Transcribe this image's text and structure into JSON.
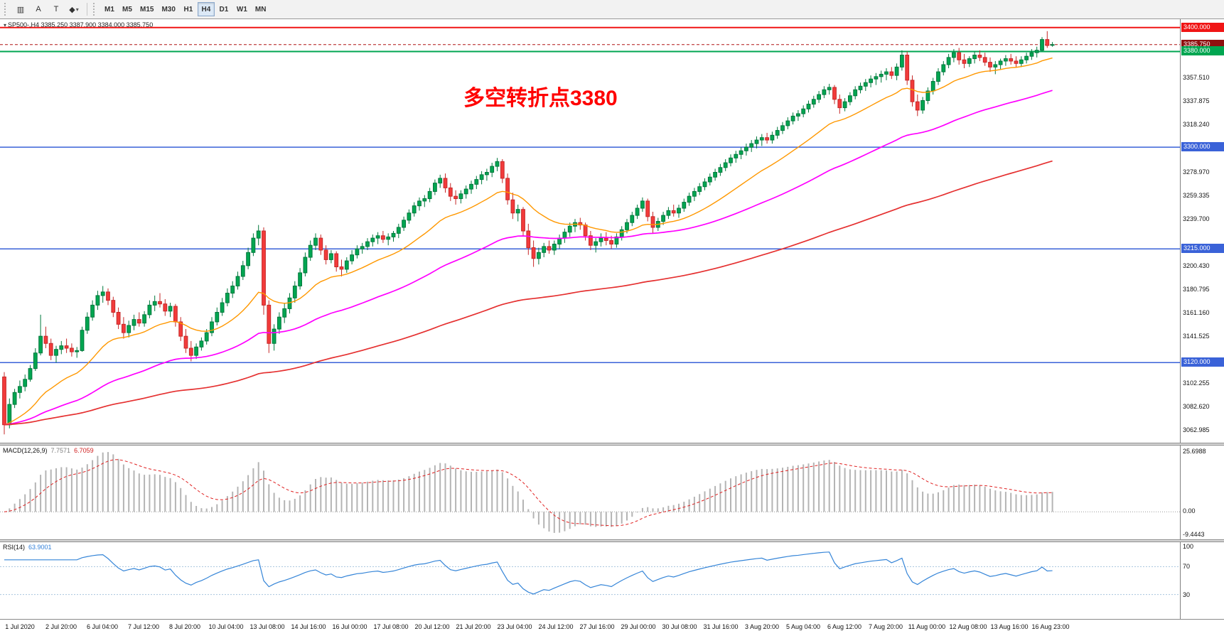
{
  "toolbar": {
    "tools": [
      {
        "name": "chart-mode",
        "glyph": "▥"
      },
      {
        "name": "text-label",
        "glyph": "A"
      },
      {
        "name": "text-box",
        "glyph": "T"
      },
      {
        "name": "shapes",
        "glyph": "◆"
      }
    ],
    "caret_glyph": "▾",
    "timeframes": [
      "M1",
      "M5",
      "M15",
      "M30",
      "H1",
      "H4",
      "D1",
      "W1",
      "MN"
    ],
    "active_timeframe": "H4"
  },
  "chart_data": {
    "type": "candlestick",
    "symbol": "SP500-",
    "timeframe": "H4",
    "title_line": "SP500-,H4  3385.250 3387.900 3384.000 3385.750",
    "annotation": {
      "text": "多空转折点3380",
      "color": "#ff0000"
    },
    "ylim": [
      3053,
      3407
    ],
    "up_color": "#00a651",
    "up_stroke": "#00783c",
    "down_color": "#f23b3b",
    "down_stroke": "#c62828",
    "hlines": [
      {
        "price": 3400.0,
        "label": "3400.000",
        "color": "#f01515",
        "width": 2,
        "dash": "",
        "badge_bg": "#f01515"
      },
      {
        "price": 3385.75,
        "label": "3385.750",
        "color": "#b01212",
        "width": 1,
        "dash": "4,3",
        "badge_bg": "#8f1010"
      },
      {
        "price": 3380.0,
        "label": "3380.000",
        "color": "#00a651",
        "width": 2,
        "dash": "",
        "badge_bg": "#00a651"
      },
      {
        "price": 3300.0,
        "label": "3300.000",
        "color": "#3a62d8",
        "width": 1.5,
        "dash": "",
        "badge_bg": "#3a62d8"
      },
      {
        "price": 3215.0,
        "label": "3215.000",
        "color": "#3a62d8",
        "width": 1.5,
        "dash": "",
        "badge_bg": "#3a62d8"
      },
      {
        "price": 3120.0,
        "label": "3120.000",
        "color": "#3a62d8",
        "width": 1.5,
        "dash": "",
        "badge_bg": "#3a62d8"
      }
    ],
    "y_axis_ticks": [
      3357.51,
      3337.875,
      3318.24,
      3278.97,
      3259.335,
      3239.7,
      3200.43,
      3180.795,
      3161.16,
      3141.525,
      3102.255,
      3082.62,
      3062.985
    ],
    "x_labels": [
      "1 Jul 2020",
      "2 Jul 20:00",
      "6 Jul 04:00",
      "7 Jul 12:00",
      "8 Jul 20:00",
      "10 Jul 04:00",
      "13 Jul 08:00",
      "14 Jul 16:00",
      "16 Jul 00:00",
      "17 Jul 08:00",
      "20 Jul 12:00",
      "21 Jul 20:00",
      "23 Jul 04:00",
      "24 Jul 12:00",
      "27 Jul 16:00",
      "29 Jul 00:00",
      "30 Jul 08:00",
      "31 Jul 16:00",
      "3 Aug 20:00",
      "5 Aug 04:00",
      "6 Aug 12:00",
      "7 Aug 20:00",
      "11 Aug 00:00",
      "12 Aug 08:00",
      "13 Aug 16:00",
      "16 Aug 23:00"
    ],
    "overlays": [
      {
        "name": "ma-fast",
        "type": "ema",
        "period": 20,
        "color": "#ff9800",
        "width": 1.4
      },
      {
        "name": "ma-mid",
        "type": "ema",
        "period": 60,
        "color": "#ff00ff",
        "width": 1.7
      },
      {
        "name": "ma-slow",
        "type": "ema",
        "period": 150,
        "color": "#e53030",
        "width": 1.7
      }
    ],
    "candles": [
      [
        3108,
        3112,
        3060,
        3068
      ],
      [
        3068,
        3090,
        3065,
        3085
      ],
      [
        3085,
        3098,
        3082,
        3095
      ],
      [
        3095,
        3105,
        3090,
        3100
      ],
      [
        3100,
        3110,
        3096,
        3106
      ],
      [
        3106,
        3118,
        3104,
        3115
      ],
      [
        3115,
        3132,
        3113,
        3128
      ],
      [
        3128,
        3160,
        3126,
        3142
      ],
      [
        3142,
        3150,
        3132,
        3136
      ],
      [
        3136,
        3140,
        3122,
        3126
      ],
      [
        3126,
        3134,
        3120,
        3131
      ],
      [
        3131,
        3138,
        3127,
        3134
      ],
      [
        3134,
        3140,
        3128,
        3132
      ],
      [
        3132,
        3136,
        3125,
        3129
      ],
      [
        3129,
        3133,
        3124,
        3130
      ],
      [
        3130,
        3150,
        3129,
        3147
      ],
      [
        3147,
        3162,
        3144,
        3158
      ],
      [
        3158,
        3172,
        3155,
        3168
      ],
      [
        3168,
        3180,
        3164,
        3176
      ],
      [
        3176,
        3184,
        3170,
        3179
      ],
      [
        3179,
        3182,
        3168,
        3172
      ],
      [
        3172,
        3175,
        3158,
        3162
      ],
      [
        3162,
        3166,
        3148,
        3152
      ],
      [
        3152,
        3158,
        3140,
        3145
      ],
      [
        3145,
        3155,
        3141,
        3151
      ],
      [
        3151,
        3160,
        3147,
        3156
      ],
      [
        3156,
        3162,
        3150,
        3153
      ],
      [
        3153,
        3163,
        3150,
        3160
      ],
      [
        3160,
        3172,
        3157,
        3168
      ],
      [
        3168,
        3176,
        3163,
        3171
      ],
      [
        3171,
        3178,
        3166,
        3169
      ],
      [
        3169,
        3173,
        3159,
        3163
      ],
      [
        3163,
        3170,
        3158,
        3167
      ],
      [
        3167,
        3169,
        3150,
        3154
      ],
      [
        3154,
        3158,
        3138,
        3142
      ],
      [
        3142,
        3148,
        3128,
        3132
      ],
      [
        3132,
        3138,
        3121,
        3126
      ],
      [
        3126,
        3136,
        3123,
        3133
      ],
      [
        3133,
        3141,
        3130,
        3138
      ],
      [
        3138,
        3148,
        3135,
        3145
      ],
      [
        3145,
        3158,
        3142,
        3154
      ],
      [
        3154,
        3166,
        3151,
        3162
      ],
      [
        3162,
        3174,
        3159,
        3170
      ],
      [
        3170,
        3182,
        3167,
        3178
      ],
      [
        3178,
        3188,
        3174,
        3184
      ],
      [
        3184,
        3196,
        3181,
        3192
      ],
      [
        3192,
        3205,
        3189,
        3201
      ],
      [
        3201,
        3216,
        3198,
        3212
      ],
      [
        3212,
        3228,
        3209,
        3224
      ],
      [
        3224,
        3235,
        3218,
        3230
      ],
      [
        3230,
        3233,
        3160,
        3168
      ],
      [
        3168,
        3172,
        3128,
        3136
      ],
      [
        3136,
        3152,
        3130,
        3148
      ],
      [
        3148,
        3162,
        3144,
        3158
      ],
      [
        3158,
        3170,
        3153,
        3165
      ],
      [
        3165,
        3178,
        3161,
        3174
      ],
      [
        3174,
        3188,
        3170,
        3184
      ],
      [
        3184,
        3199,
        3181,
        3195
      ],
      [
        3195,
        3212,
        3192,
        3208
      ],
      [
        3208,
        3222,
        3205,
        3218
      ],
      [
        3218,
        3228,
        3214,
        3224
      ],
      [
        3224,
        3227,
        3210,
        3214
      ],
      [
        3214,
        3218,
        3202,
        3206
      ],
      [
        3206,
        3214,
        3203,
        3211
      ],
      [
        3211,
        3213,
        3196,
        3200
      ],
      [
        3200,
        3206,
        3192,
        3198
      ],
      [
        3198,
        3208,
        3195,
        3205
      ],
      [
        3205,
        3214,
        3202,
        3210
      ],
      [
        3210,
        3218,
        3207,
        3215
      ],
      [
        3215,
        3220,
        3211,
        3217
      ],
      [
        3217,
        3224,
        3214,
        3221
      ],
      [
        3221,
        3227,
        3217,
        3224
      ],
      [
        3224,
        3229,
        3219,
        3226
      ],
      [
        3226,
        3230,
        3220,
        3223
      ],
      [
        3223,
        3228,
        3218,
        3225
      ],
      [
        3225,
        3230,
        3221,
        3228
      ],
      [
        3228,
        3236,
        3224,
        3233
      ],
      [
        3233,
        3242,
        3230,
        3239
      ],
      [
        3239,
        3248,
        3236,
        3245
      ],
      [
        3245,
        3254,
        3242,
        3251
      ],
      [
        3251,
        3258,
        3247,
        3255
      ],
      [
        3255,
        3260,
        3250,
        3257
      ],
      [
        3257,
        3266,
        3254,
        3263
      ],
      [
        3263,
        3273,
        3260,
        3270
      ],
      [
        3270,
        3277,
        3266,
        3274
      ],
      [
        3274,
        3278,
        3262,
        3266
      ],
      [
        3266,
        3270,
        3255,
        3259
      ],
      [
        3259,
        3264,
        3252,
        3257
      ],
      [
        3257,
        3264,
        3253,
        3261
      ],
      [
        3261,
        3268,
        3257,
        3265
      ],
      [
        3265,
        3272,
        3261,
        3269
      ],
      [
        3269,
        3276,
        3265,
        3273
      ],
      [
        3273,
        3280,
        3269,
        3277
      ],
      [
        3277,
        3282,
        3272,
        3279
      ],
      [
        3279,
        3287,
        3275,
        3284
      ],
      [
        3284,
        3291,
        3280,
        3288
      ],
      [
        3288,
        3290,
        3270,
        3274
      ],
      [
        3274,
        3278,
        3252,
        3256
      ],
      [
        3256,
        3262,
        3240,
        3245
      ],
      [
        3245,
        3252,
        3238,
        3248
      ],
      [
        3248,
        3250,
        3226,
        3230
      ],
      [
        3230,
        3236,
        3210,
        3216
      ],
      [
        3216,
        3222,
        3200,
        3207
      ],
      [
        3207,
        3216,
        3202,
        3212
      ],
      [
        3212,
        3220,
        3208,
        3217
      ],
      [
        3217,
        3222,
        3211,
        3214
      ],
      [
        3214,
        3222,
        3210,
        3219
      ],
      [
        3219,
        3227,
        3215,
        3224
      ],
      [
        3224,
        3232,
        3220,
        3229
      ],
      [
        3229,
        3237,
        3225,
        3234
      ],
      [
        3234,
        3240,
        3229,
        3237
      ],
      [
        3237,
        3241,
        3231,
        3235
      ],
      [
        3235,
        3237,
        3222,
        3226
      ],
      [
        3226,
        3230,
        3214,
        3218
      ],
      [
        3218,
        3224,
        3212,
        3221
      ],
      [
        3221,
        3228,
        3217,
        3224
      ],
      [
        3224,
        3229,
        3218,
        3222
      ],
      [
        3222,
        3226,
        3215,
        3219
      ],
      [
        3219,
        3228,
        3216,
        3225
      ],
      [
        3225,
        3234,
        3222,
        3231
      ],
      [
        3231,
        3240,
        3228,
        3237
      ],
      [
        3237,
        3246,
        3234,
        3243
      ],
      [
        3243,
        3252,
        3240,
        3249
      ],
      [
        3249,
        3258,
        3246,
        3255
      ],
      [
        3255,
        3257,
        3238,
        3242
      ],
      [
        3242,
        3246,
        3228,
        3233
      ],
      [
        3233,
        3241,
        3230,
        3238
      ],
      [
        3238,
        3246,
        3235,
        3243
      ],
      [
        3243,
        3250,
        3240,
        3247
      ],
      [
        3247,
        3252,
        3242,
        3245
      ],
      [
        3245,
        3252,
        3241,
        3249
      ],
      [
        3249,
        3257,
        3246,
        3254
      ],
      [
        3254,
        3262,
        3251,
        3259
      ],
      [
        3259,
        3266,
        3255,
        3263
      ],
      [
        3263,
        3270,
        3260,
        3267
      ],
      [
        3267,
        3274,
        3264,
        3271
      ],
      [
        3271,
        3278,
        3268,
        3275
      ],
      [
        3275,
        3282,
        3272,
        3279
      ],
      [
        3279,
        3286,
        3276,
        3283
      ],
      [
        3283,
        3290,
        3280,
        3287
      ],
      [
        3287,
        3294,
        3284,
        3291
      ],
      [
        3291,
        3297,
        3287,
        3294
      ],
      [
        3294,
        3300,
        3290,
        3297
      ],
      [
        3297,
        3303,
        3293,
        3300
      ],
      [
        3300,
        3306,
        3296,
        3303
      ],
      [
        3303,
        3309,
        3299,
        3306
      ],
      [
        3306,
        3311,
        3301,
        3308
      ],
      [
        3308,
        3312,
        3303,
        3306
      ],
      [
        3306,
        3313,
        3303,
        3310
      ],
      [
        3310,
        3317,
        3307,
        3314
      ],
      [
        3314,
        3321,
        3311,
        3318
      ],
      [
        3318,
        3325,
        3315,
        3322
      ],
      [
        3322,
        3329,
        3319,
        3326
      ],
      [
        3326,
        3331,
        3322,
        3328
      ],
      [
        3328,
        3335,
        3325,
        3332
      ],
      [
        3332,
        3339,
        3329,
        3336
      ],
      [
        3336,
        3343,
        3333,
        3340
      ],
      [
        3340,
        3347,
        3337,
        3344
      ],
      [
        3344,
        3351,
        3341,
        3348
      ],
      [
        3348,
        3353,
        3344,
        3350
      ],
      [
        3350,
        3352,
        3336,
        3340
      ],
      [
        3340,
        3344,
        3328,
        3333
      ],
      [
        3333,
        3341,
        3330,
        3338
      ],
      [
        3338,
        3346,
        3335,
        3343
      ],
      [
        3343,
        3351,
        3340,
        3348
      ],
      [
        3348,
        3354,
        3345,
        3351
      ],
      [
        3351,
        3357,
        3347,
        3354
      ],
      [
        3354,
        3360,
        3350,
        3357
      ],
      [
        3357,
        3362,
        3352,
        3359
      ],
      [
        3359,
        3364,
        3354,
        3361
      ],
      [
        3361,
        3366,
        3356,
        3363
      ],
      [
        3363,
        3367,
        3357,
        3360
      ],
      [
        3360,
        3370,
        3356,
        3367
      ],
      [
        3367,
        3381,
        3364,
        3377
      ],
      [
        3377,
        3380,
        3352,
        3356
      ],
      [
        3356,
        3360,
        3334,
        3338
      ],
      [
        3338,
        3344,
        3326,
        3331
      ],
      [
        3331,
        3342,
        3328,
        3339
      ],
      [
        3339,
        3350,
        3336,
        3347
      ],
      [
        3347,
        3358,
        3344,
        3355
      ],
      [
        3355,
        3366,
        3352,
        3363
      ],
      [
        3363,
        3372,
        3360,
        3369
      ],
      [
        3369,
        3378,
        3366,
        3375
      ],
      [
        3375,
        3382,
        3371,
        3379
      ],
      [
        3379,
        3383,
        3369,
        3373
      ],
      [
        3373,
        3378,
        3366,
        3370
      ],
      [
        3370,
        3376,
        3367,
        3374
      ],
      [
        3374,
        3380,
        3370,
        3377
      ],
      [
        3377,
        3381,
        3372,
        3375
      ],
      [
        3375,
        3379,
        3368,
        3371
      ],
      [
        3371,
        3375,
        3363,
        3367
      ],
      [
        3367,
        3372,
        3361,
        3369
      ],
      [
        3369,
        3374,
        3365,
        3372
      ],
      [
        3372,
        3377,
        3368,
        3374
      ],
      [
        3374,
        3378,
        3369,
        3372
      ],
      [
        3372,
        3376,
        3367,
        3370
      ],
      [
        3370,
        3376,
        3367,
        3373
      ],
      [
        3373,
        3379,
        3370,
        3376
      ],
      [
        3376,
        3382,
        3373,
        3379
      ],
      [
        3379,
        3384,
        3375,
        3381
      ],
      [
        3381,
        3392,
        3380,
        3390
      ],
      [
        3390,
        3397,
        3383,
        3385
      ],
      [
        3385.25,
        3387.9,
        3384,
        3385.75
      ]
    ],
    "indicators": {
      "macd": {
        "label": "MACD(12,26,9)",
        "value_main": "7.7571",
        "value_signal": "6.7059",
        "scale_max": "25.6988",
        "scale_zero": "0.00",
        "scale_min": "-9.4443",
        "fast": 12,
        "slow": 26,
        "signal": 9,
        "histogram_color": "#b4b4b4",
        "signal_color": "#e02020"
      },
      "rsi": {
        "label": "RSI(14)",
        "value": "63.9001",
        "period": 14,
        "levels": [
          70,
          30
        ],
        "scale_labels": [
          "100",
          "70",
          "30"
        ],
        "color": "#3585d8",
        "level_color": "#a8c4dd"
      }
    }
  }
}
